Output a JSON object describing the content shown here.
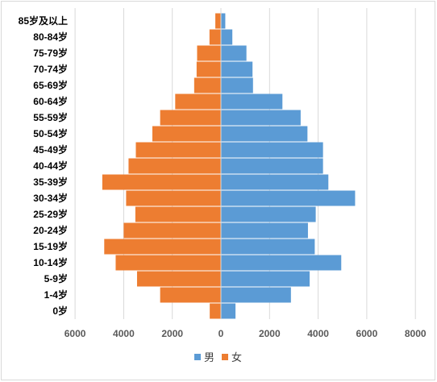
{
  "chart_data": {
    "type": "bar",
    "orientation": "horizontal",
    "categories": [
      "85岁及以上",
      "80-84岁",
      "75-79岁",
      "70-74岁",
      "65-69岁",
      "60-64岁",
      "55-59岁",
      "50-54岁",
      "45-49岁",
      "40-44岁",
      "35-39岁",
      "30-34岁",
      "25-29岁",
      "20-24岁",
      "15-19岁",
      "10-14岁",
      "5-9岁",
      "1-4岁",
      "0岁"
    ],
    "series": [
      {
        "name": "男",
        "color": "#5B9BD5",
        "values": [
          180,
          470,
          1050,
          1300,
          1320,
          2530,
          3280,
          3560,
          4200,
          4200,
          4420,
          5520,
          3900,
          3580,
          3860,
          4950,
          3650,
          2880,
          600
        ]
      },
      {
        "name": "女",
        "color": "#ED7D31",
        "values": [
          230,
          470,
          980,
          1000,
          1100,
          1880,
          2500,
          2820,
          3500,
          3800,
          4880,
          3900,
          3520,
          4000,
          4800,
          4330,
          3450,
          2500,
          460
        ]
      }
    ],
    "xaxis_ticks": [
      "6000",
      "4000",
      "2000",
      "0",
      "2000",
      "4000",
      "6000",
      "8000"
    ],
    "xlim": [
      -6000,
      8000
    ],
    "grid": true,
    "legend_position": "bottom",
    "title": "",
    "xlabel": "",
    "ylabel": ""
  }
}
